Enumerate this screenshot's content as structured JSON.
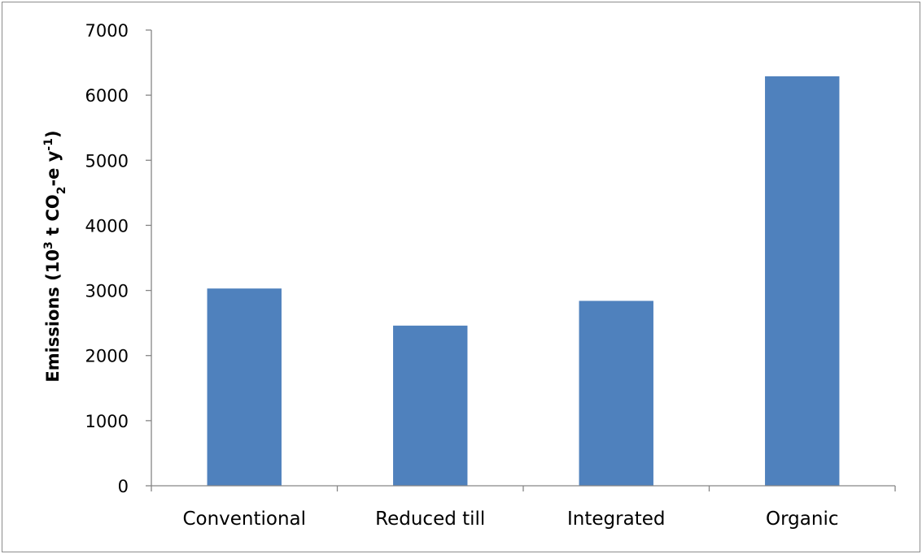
{
  "chart_data": {
    "type": "bar",
    "title": "",
    "xlabel": "",
    "ylabel": {
      "parts": [
        {
          "text": "Emissions (10"
        },
        {
          "text": "3",
          "shift": "super"
        },
        {
          "text": " t CO"
        },
        {
          "text": "2",
          "shift": "sub"
        },
        {
          "text": "-e y"
        },
        {
          "text": "-1",
          "shift": "super"
        },
        {
          "text": ")"
        }
      ]
    },
    "ylim": [
      0,
      7000
    ],
    "yticks": [
      "0",
      "1000",
      "2000",
      "3000",
      "4000",
      "5000",
      "6000",
      "7000"
    ],
    "categories": [
      "Conventional",
      "Reduced till",
      "Integrated",
      "Organic"
    ],
    "values": [
      3030,
      2460,
      2840,
      6290
    ],
    "bar_color": "#4f81bd",
    "grid": false,
    "legend": "none"
  }
}
